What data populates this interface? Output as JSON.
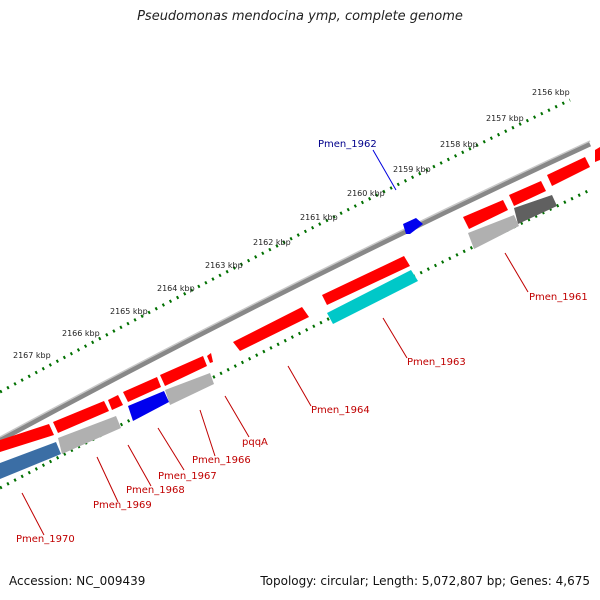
{
  "title": "Pseudomonas mendocina ymp, complete genome",
  "footer": {
    "accession": "Accession: NC_009439",
    "summary": "Topology: circular; Length: 5,072,807 bp; Genes: 4,675"
  },
  "colors": {
    "forward_cds": "#ff0000",
    "reverse_cds": "#ff0000",
    "rrna_blue": "#0000ee",
    "cyan_feature": "#00c8c8",
    "steelblue_feature": "#3b6ea5",
    "gray_feature": "#b0b0b0",
    "darkgray_feature": "#606060",
    "backbone": "#888888",
    "ticks": "#007000",
    "label_red": "#c00000",
    "label_blue": "#00008b"
  },
  "tick_labels": [
    "2156 kbp",
    "2157 kbp",
    "2158 kbp",
    "2159 kbp",
    "2160 kbp",
    "2161 kbp",
    "2162 kbp",
    "2163 kbp",
    "2164 kbp",
    "2165 kbp",
    "2166 kbp",
    "2167 kbp"
  ],
  "gene_labels": [
    "Pmen_1962",
    "Pmen_1961",
    "Pmen_1963",
    "Pmen_1964",
    "pqqA",
    "Pmen_1966",
    "Pmen_1967",
    "Pmen_1968",
    "Pmen_1969",
    "Pmen_1970"
  ]
}
